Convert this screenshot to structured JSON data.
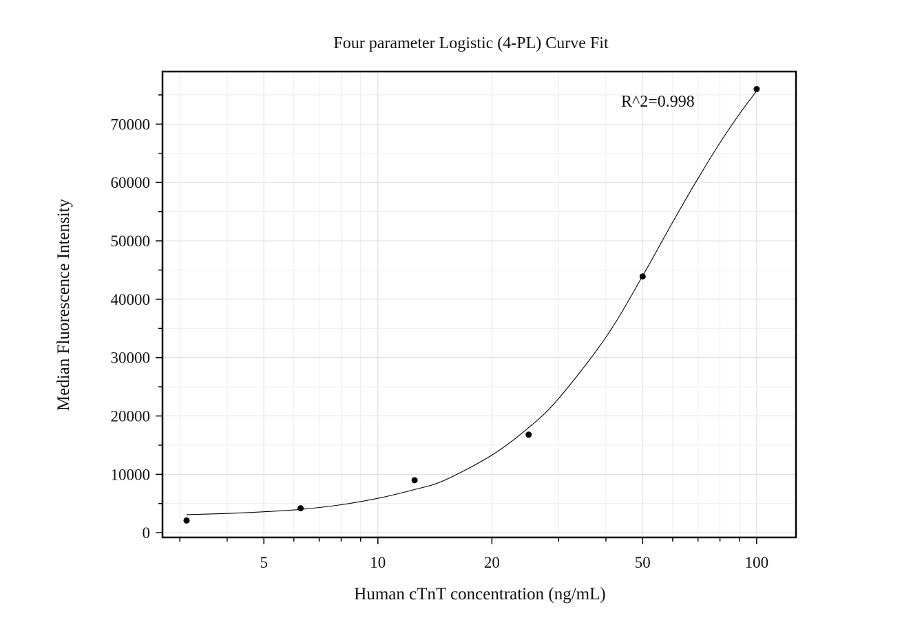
{
  "chart_data": {
    "type": "scatter",
    "title": "Four parameter Logistic (4-PL) Curve Fit",
    "xlabel": "Human cTnT concentration (ng/mL)",
    "ylabel": "Median Fluorescence Intensity",
    "x_scale": "log",
    "xlim": [
      2.7,
      127
    ],
    "ylim": [
      -800,
      79000
    ],
    "x_ticks": [
      5,
      10,
      20,
      50,
      100
    ],
    "x_tick_labels": [
      "5",
      "10",
      "20",
      "50",
      "100"
    ],
    "y_ticks": [
      0,
      10000,
      20000,
      30000,
      40000,
      50000,
      60000,
      70000
    ],
    "y_tick_labels": [
      "0",
      "10000",
      "20000",
      "30000",
      "40000",
      "50000",
      "60000",
      "70000"
    ],
    "annotation": "R^2=0.998",
    "grid": true,
    "series": [
      {
        "kind": "points",
        "x": [
          3.125,
          6.25,
          12.5,
          25,
          50,
          100
        ],
        "y": [
          2100,
          4200,
          9000,
          16800,
          43900,
          76000
        ]
      },
      {
        "kind": "fit-curve",
        "x": [
          3.125,
          4,
          5,
          6.25,
          8,
          10,
          12.5,
          15,
          20,
          25,
          30,
          40,
          50,
          60,
          70,
          80,
          90,
          100
        ],
        "y": [
          3100,
          3300,
          3600,
          4000,
          4800,
          5900,
          7400,
          9000,
          13300,
          18000,
          23000,
          33500,
          44000,
          53200,
          60700,
          66800,
          71700,
          75700
        ]
      }
    ]
  }
}
